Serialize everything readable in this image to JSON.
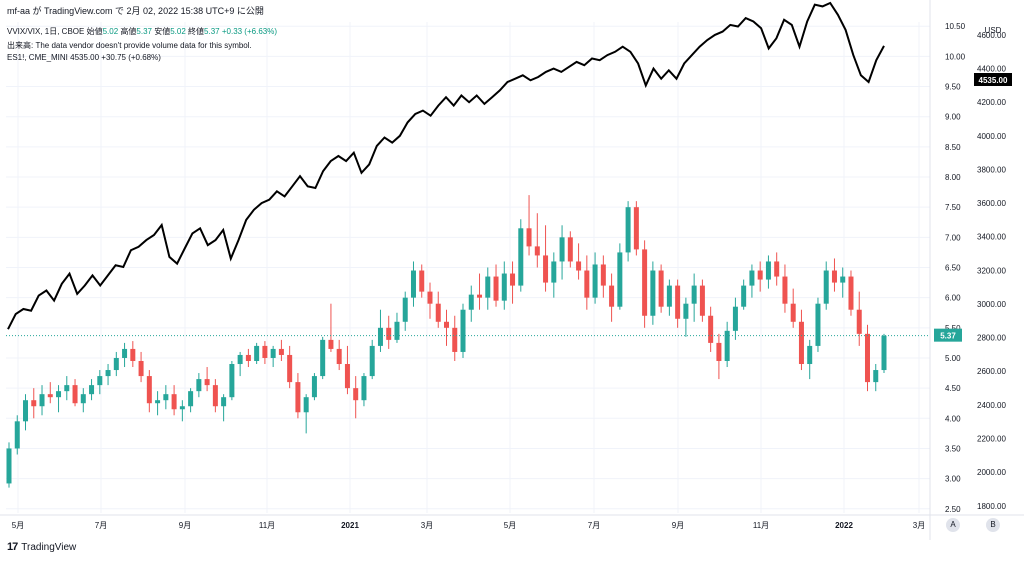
{
  "header": {
    "line": "mf-aa が TradingView.com で 2月 02, 2022 15:38 UTC+9 に公開"
  },
  "legend": {
    "main": {
      "symbol": "VVIX/VIX, 1日, CBOE",
      "open_label": "始値",
      "open": "5.02",
      "high_label": "高値",
      "high": "5.37",
      "low_label": "安値",
      "low": "5.02",
      "close_label": "終値",
      "close": "5.37",
      "change": "+0.33 (+6.63%)"
    },
    "volume": "出来高: The data vendor doesn't provide volume data for this symbol.",
    "overlay": {
      "symbol": "ES1!, CME_MINI",
      "value": "4535.00",
      "change": "+30.75 (+0.68%)"
    }
  },
  "footer": {
    "brand": "TradingView",
    "btn_a": "A",
    "btn_b": "B"
  },
  "chart_data": {
    "type": "line",
    "x_ticks": [
      "5月",
      "7月",
      "9月",
      "11月",
      "2021",
      "3月",
      "5月",
      "7月",
      "9月",
      "11月",
      "2022",
      "3月"
    ],
    "y_left_currency": "USD",
    "y_ratio_ticks": [
      "10.50",
      "10.00",
      "9.50",
      "9.00",
      "8.50",
      "8.00",
      "7.50",
      "7.00",
      "6.50",
      "6.00",
      "5.50",
      "5.00",
      "4.50",
      "4.00",
      "3.50",
      "3.00",
      "2.50"
    ],
    "y_ratio_range": [
      2.43,
      10.57
    ],
    "y_es_ticks": [
      "4600.00",
      "4400.00",
      "4200.00",
      "4000.00",
      "3800.00",
      "3600.00",
      "3400.00",
      "3200.00",
      "3000.00",
      "2800.00",
      "2600.00",
      "2400.00",
      "2200.00",
      "2000.00",
      "1800.00"
    ],
    "y_es_range": [
      1757,
      4677
    ],
    "last_ratio_label": "5.37",
    "last_es_label": "4535.00",
    "colors": {
      "up": "#26a69a",
      "down": "#ef5350",
      "es_line": "#000000",
      "last_ratio_bg": "#26a69a",
      "last_es_bg": "#000000"
    },
    "series": [
      {
        "name": "VVIX/VIX",
        "kind": "candlestick",
        "ohlc_sample": [
          [
            2.92,
            3.6,
            2.85,
            3.5
          ],
          [
            3.5,
            4.05,
            3.4,
            3.95
          ],
          [
            3.95,
            4.4,
            3.8,
            4.3
          ],
          [
            4.3,
            4.5,
            4.0,
            4.2
          ],
          [
            4.2,
            4.55,
            4.05,
            4.4
          ],
          [
            4.4,
            4.6,
            4.25,
            4.35
          ],
          [
            4.35,
            4.55,
            4.1,
            4.45
          ],
          [
            4.45,
            4.7,
            4.3,
            4.55
          ],
          [
            4.55,
            4.65,
            4.2,
            4.25
          ],
          [
            4.25,
            4.5,
            4.1,
            4.4
          ],
          [
            4.4,
            4.65,
            4.3,
            4.55
          ],
          [
            4.55,
            4.8,
            4.4,
            4.7
          ],
          [
            4.7,
            4.9,
            4.55,
            4.8
          ],
          [
            4.8,
            5.1,
            4.7,
            5.0
          ],
          [
            5.0,
            5.25,
            4.85,
            5.15
          ],
          [
            5.15,
            5.28,
            4.85,
            4.95
          ],
          [
            4.95,
            5.1,
            4.6,
            4.7
          ],
          [
            4.7,
            4.8,
            4.1,
            4.25
          ],
          [
            4.25,
            4.45,
            4.05,
            4.3
          ],
          [
            4.3,
            4.55,
            4.15,
            4.4
          ],
          [
            4.4,
            4.55,
            4.05,
            4.15
          ],
          [
            4.15,
            4.3,
            3.95,
            4.2
          ],
          [
            4.2,
            4.5,
            4.1,
            4.45
          ],
          [
            4.45,
            4.75,
            4.35,
            4.65
          ],
          [
            4.65,
            4.85,
            4.45,
            4.55
          ],
          [
            4.55,
            4.65,
            4.1,
            4.2
          ],
          [
            4.2,
            4.4,
            3.95,
            4.35
          ],
          [
            4.35,
            4.95,
            4.3,
            4.9
          ],
          [
            4.9,
            5.1,
            4.7,
            5.05
          ],
          [
            5.05,
            5.15,
            4.85,
            4.95
          ],
          [
            4.95,
            5.25,
            4.9,
            5.2
          ],
          [
            5.2,
            5.28,
            4.9,
            5.0
          ],
          [
            5.0,
            5.2,
            4.85,
            5.15
          ],
          [
            5.15,
            5.3,
            4.95,
            5.05
          ],
          [
            5.05,
            5.2,
            4.5,
            4.6
          ],
          [
            4.6,
            4.75,
            4.0,
            4.1
          ],
          [
            4.1,
            4.4,
            3.75,
            4.35
          ],
          [
            4.35,
            4.75,
            4.3,
            4.7
          ],
          [
            4.7,
            5.35,
            4.65,
            5.3
          ],
          [
            5.3,
            5.9,
            5.1,
            5.15
          ],
          [
            5.15,
            5.3,
            4.8,
            4.9
          ],
          [
            4.9,
            5.2,
            4.4,
            4.5
          ],
          [
            4.5,
            4.7,
            4.0,
            4.3
          ],
          [
            4.3,
            4.75,
            4.2,
            4.7
          ],
          [
            4.7,
            5.3,
            4.65,
            5.2
          ],
          [
            5.2,
            5.8,
            5.1,
            5.5
          ],
          [
            5.5,
            5.7,
            5.15,
            5.3
          ],
          [
            5.3,
            5.75,
            5.25,
            5.6
          ],
          [
            5.6,
            6.1,
            5.45,
            6.0
          ],
          [
            6.0,
            6.6,
            5.85,
            6.45
          ],
          [
            6.45,
            6.55,
            6.0,
            6.1
          ],
          [
            6.1,
            6.25,
            5.65,
            5.9
          ],
          [
            5.9,
            6.1,
            5.5,
            5.6
          ],
          [
            5.6,
            5.8,
            5.2,
            5.5
          ],
          [
            5.5,
            5.7,
            4.95,
            5.1
          ],
          [
            5.1,
            5.9,
            5.0,
            5.8
          ],
          [
            5.8,
            6.2,
            5.6,
            6.05
          ],
          [
            6.05,
            6.4,
            5.8,
            6.0
          ],
          [
            6.0,
            6.5,
            5.8,
            6.35
          ],
          [
            6.35,
            6.55,
            5.85,
            5.95
          ],
          [
            5.95,
            6.6,
            5.8,
            6.4
          ],
          [
            6.4,
            6.6,
            5.9,
            6.2
          ],
          [
            6.2,
            7.3,
            6.1,
            7.15
          ],
          [
            7.15,
            7.7,
            6.7,
            6.85
          ],
          [
            6.85,
            7.4,
            6.5,
            6.7
          ],
          [
            6.7,
            7.2,
            6.1,
            6.25
          ],
          [
            6.25,
            6.75,
            6.0,
            6.6
          ],
          [
            6.6,
            7.2,
            6.3,
            7.0
          ],
          [
            7.0,
            7.1,
            6.5,
            6.6
          ],
          [
            6.6,
            6.9,
            6.3,
            6.45
          ],
          [
            6.45,
            6.7,
            5.8,
            6.0
          ],
          [
            6.0,
            6.75,
            5.9,
            6.55
          ],
          [
            6.55,
            6.7,
            6.0,
            6.2
          ],
          [
            6.2,
            6.4,
            5.6,
            5.85
          ],
          [
            5.85,
            6.9,
            5.8,
            6.75
          ],
          [
            6.75,
            7.6,
            6.6,
            7.5
          ],
          [
            7.5,
            7.6,
            6.7,
            6.8
          ],
          [
            6.8,
            6.95,
            5.5,
            5.7
          ],
          [
            5.7,
            6.6,
            5.55,
            6.45
          ],
          [
            6.45,
            6.55,
            5.75,
            5.85
          ],
          [
            5.85,
            6.3,
            5.7,
            6.2
          ],
          [
            6.2,
            6.3,
            5.5,
            5.65
          ],
          [
            5.65,
            6.0,
            5.35,
            5.9
          ],
          [
            5.9,
            6.4,
            5.6,
            6.2
          ],
          [
            6.2,
            6.3,
            5.6,
            5.7
          ],
          [
            5.7,
            5.85,
            5.1,
            5.25
          ],
          [
            5.25,
            5.4,
            4.65,
            4.95
          ],
          [
            4.95,
            5.6,
            4.85,
            5.45
          ],
          [
            5.45,
            6.0,
            5.3,
            5.85
          ],
          [
            5.85,
            6.3,
            5.8,
            6.2
          ],
          [
            6.2,
            6.55,
            6.0,
            6.45
          ],
          [
            6.45,
            6.6,
            6.1,
            6.3
          ],
          [
            6.3,
            6.7,
            6.15,
            6.6
          ],
          [
            6.6,
            6.75,
            6.2,
            6.35
          ],
          [
            6.35,
            6.55,
            5.75,
            5.9
          ],
          [
            5.9,
            6.15,
            5.5,
            5.6
          ],
          [
            5.6,
            5.8,
            4.8,
            4.9
          ],
          [
            4.9,
            5.3,
            4.65,
            5.2
          ],
          [
            5.2,
            6.0,
            5.1,
            5.9
          ],
          [
            5.9,
            6.6,
            5.8,
            6.45
          ],
          [
            6.45,
            6.65,
            6.1,
            6.25
          ],
          [
            6.25,
            6.5,
            6.0,
            6.35
          ],
          [
            6.35,
            6.45,
            5.7,
            5.8
          ],
          [
            5.8,
            6.1,
            5.2,
            5.4
          ],
          [
            5.4,
            5.55,
            4.45,
            4.6
          ],
          [
            4.6,
            4.9,
            4.45,
            4.8
          ],
          [
            4.8,
            5.4,
            4.75,
            5.37
          ]
        ]
      },
      {
        "name": "ES1!, CME_MINI",
        "kind": "line",
        "values": [
          2850,
          2940,
          2970,
          2960,
          3050,
          3080,
          3020,
          3120,
          3180,
          3060,
          3110,
          3170,
          3110,
          3170,
          3230,
          3220,
          3320,
          3340,
          3380,
          3410,
          3470,
          3280,
          3240,
          3330,
          3420,
          3450,
          3350,
          3380,
          3440,
          3270,
          3380,
          3500,
          3560,
          3600,
          3620,
          3670,
          3640,
          3700,
          3760,
          3700,
          3690,
          3790,
          3850,
          3880,
          3850,
          3900,
          3780,
          3830,
          3940,
          3990,
          3960,
          4000,
          4080,
          4130,
          4150,
          4120,
          4180,
          4230,
          4180,
          4240,
          4200,
          4240,
          4190,
          4230,
          4270,
          4320,
          4340,
          4360,
          4330,
          4350,
          4380,
          4400,
          4380,
          4410,
          4440,
          4420,
          4460,
          4450,
          4480,
          4500,
          4530,
          4500,
          4430,
          4300,
          4400,
          4340,
          4390,
          4340,
          4430,
          4480,
          4530,
          4570,
          4600,
          4620,
          4660,
          4650,
          4700,
          4680,
          4640,
          4520,
          4580,
          4690,
          4660,
          4530,
          4680,
          4780,
          4770,
          4790,
          4720,
          4630,
          4480,
          4360,
          4320,
          4450,
          4535
        ]
      }
    ]
  }
}
